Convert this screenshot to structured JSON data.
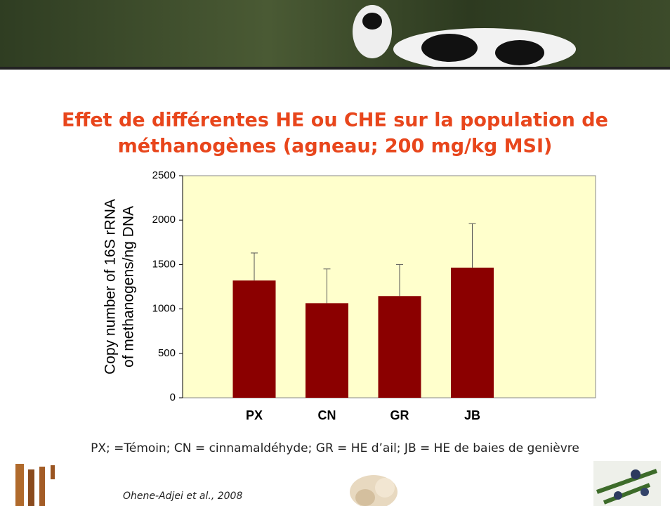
{
  "chart_data": {
    "type": "bar",
    "title": "Effet de différentes HE ou CHE sur la population de",
    "title_line2": "méthanogènes (agneau; 200 mg/kg MSI)",
    "ylabel": "Copy number of 16S rRNA",
    "ylabel_line2": "of methanogens/ng DNA",
    "categories": [
      "PX",
      "CN",
      "GR",
      "JB"
    ],
    "values": [
      1320,
      1065,
      1145,
      1465
    ],
    "errors": [
      310,
      385,
      355,
      495
    ],
    "color": "#8b0000",
    "plot_background": "#ffffcc",
    "ylim": [
      0,
      2500
    ],
    "yticks": [
      0,
      500,
      1000,
      1500,
      2000,
      2500
    ],
    "footnote": "PX; =Témoin; CN = cinnamaldéhyde; GR = HE d’ail; JB = HE de baies de genièvre",
    "citation": "Ohene-Adjei et al., 2008"
  }
}
